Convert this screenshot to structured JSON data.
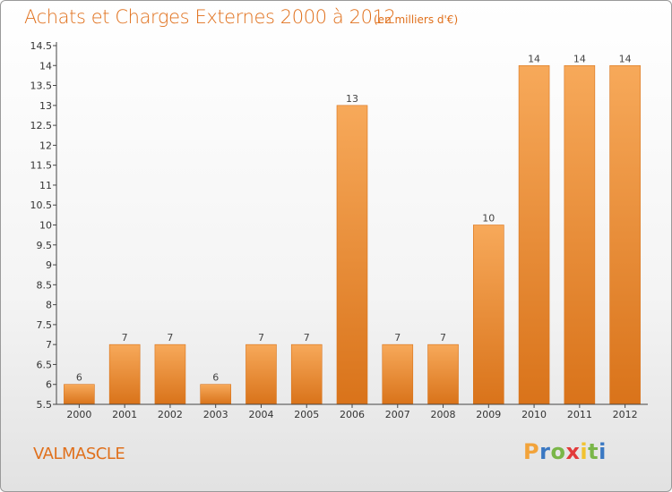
{
  "header": {
    "title": "Achats et Charges Externes 2000 à 2012",
    "unit_note": "(en milliers d'€)"
  },
  "footer": {
    "commune": "VALMASCLE",
    "logo_letters": [
      "P",
      "r",
      "o",
      "x",
      "i",
      "t",
      "i"
    ],
    "logo_colors": [
      "#f2a33a",
      "#3a78c2",
      "#7ab648",
      "#e23a3a",
      "#f2c230",
      "#7ab648",
      "#3a78c2"
    ]
  },
  "chart_data": {
    "type": "bar",
    "title": "Achats et Charges Externes 2000 à 2012",
    "subtitle": "(en milliers d'€)",
    "categories": [
      "2000",
      "2001",
      "2002",
      "2003",
      "2004",
      "2005",
      "2006",
      "2007",
      "2008",
      "2009",
      "2010",
      "2011",
      "2012"
    ],
    "values": [
      6,
      7,
      7,
      6,
      7,
      7,
      13,
      7,
      7,
      10,
      14,
      14,
      14
    ],
    "data_labels": [
      "6",
      "7",
      "7",
      "6",
      "7",
      "7",
      "13",
      "7",
      "7",
      "10",
      "14",
      "14",
      "14"
    ],
    "y_ticks": [
      "5.5",
      "6",
      "6.5",
      "7",
      "7.5",
      "8",
      "8.5",
      "9",
      "9.5",
      "10",
      "10.5",
      "11",
      "11.5",
      "12",
      "12.5",
      "13",
      "13.5",
      "14",
      "14.5"
    ],
    "ylim": [
      5.5,
      14.5
    ],
    "grid": false,
    "legend": "none",
    "bar_color": "#f08a2c",
    "bar_color_light": "#f7a95a",
    "bar_color_dark": "#d9731a",
    "axis_color": "#444444"
  }
}
